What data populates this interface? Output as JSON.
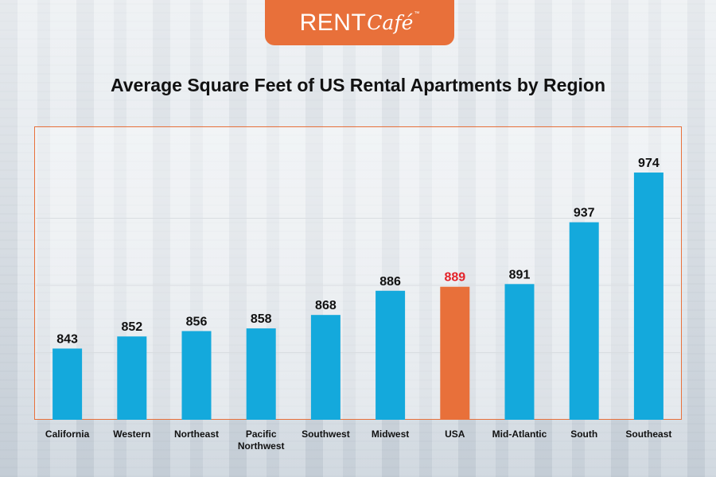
{
  "logo": {
    "rent": "RENT",
    "cafe": "Café",
    "tm": "™"
  },
  "title": "Average Square Feet of US Rental Apartments by Region",
  "colors": {
    "bar": "#14a9dc",
    "highlight_bar": "#e8703a",
    "highlight_label": "#e4232a",
    "label": "#111111",
    "border": "#e8703a",
    "gridline": "#d9dde1"
  },
  "chart_data": {
    "type": "bar",
    "title": "Average Square Feet of US Rental Apartments by Region",
    "xlabel": "",
    "ylabel": "",
    "categories": [
      "California",
      "Western",
      "Northeast",
      "Pacific Northwest",
      "Southwest",
      "Midwest",
      "USA",
      "Mid-Atlantic",
      "South",
      "Southeast"
    ],
    "category_lines": [
      [
        "California"
      ],
      [
        "Western"
      ],
      [
        "Northeast"
      ],
      [
        "Pacific",
        "Northwest"
      ],
      [
        "Southwest"
      ],
      [
        "Midwest"
      ],
      [
        "USA"
      ],
      [
        "Mid-Atlantic"
      ],
      [
        "South"
      ],
      [
        "Southeast"
      ]
    ],
    "values": [
      843,
      852,
      856,
      858,
      868,
      886,
      889,
      891,
      937,
      974
    ],
    "value_labels": [
      "843",
      "852",
      "856",
      "858",
      "868",
      "886",
      "889",
      "891",
      "937",
      "974"
    ],
    "highlight_category": "USA",
    "ylim": [
      790,
      990
    ],
    "gridlines": [
      840,
      890,
      940
    ],
    "grid": true,
    "legend": "none"
  }
}
